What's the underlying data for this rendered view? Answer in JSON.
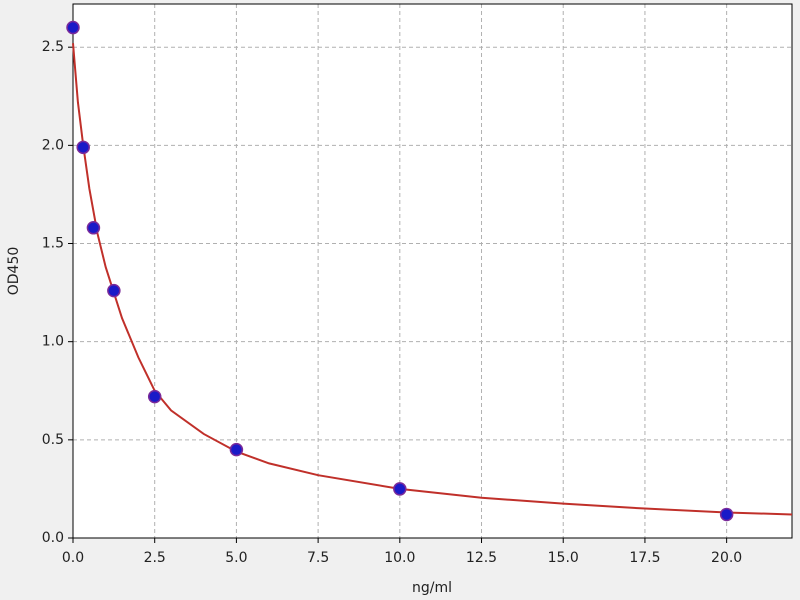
{
  "chart_data": {
    "type": "scatter",
    "x_label": "ng/ml",
    "y_label": "OD450",
    "xlim": [
      0,
      22
    ],
    "ylim": [
      0,
      2.72
    ],
    "xticks": [
      {
        "value": 0,
        "label": "0.0"
      },
      {
        "value": 2.5,
        "label": "2.5"
      },
      {
        "value": 5,
        "label": "5.0"
      },
      {
        "value": 7.5,
        "label": "7.5"
      },
      {
        "value": 10,
        "label": "10.0"
      },
      {
        "value": 12.5,
        "label": "12.5"
      },
      {
        "value": 15,
        "label": "15.0"
      },
      {
        "value": 17.5,
        "label": "17.5"
      },
      {
        "value": 20,
        "label": "20.0"
      }
    ],
    "yticks": [
      {
        "value": 0,
        "label": "0.0"
      },
      {
        "value": 0.5,
        "label": "0.5"
      },
      {
        "value": 1,
        "label": "1.0"
      },
      {
        "value": 1.5,
        "label": "1.5"
      },
      {
        "value": 2,
        "label": "2.0"
      },
      {
        "value": 2.5,
        "label": "2.5"
      }
    ],
    "grid": true,
    "series": [
      {
        "type": "line",
        "color": "#c0302a",
        "x": [
          0,
          0.15,
          0.3125,
          0.5,
          0.75,
          1,
          1.5,
          2,
          2.5,
          3,
          4,
          5,
          6,
          7.5,
          10,
          12.5,
          15,
          17.5,
          20,
          22
        ],
        "values": [
          2.52,
          2.22,
          2.0,
          1.78,
          1.55,
          1.38,
          1.12,
          0.92,
          0.75,
          0.65,
          0.53,
          0.44,
          0.38,
          0.32,
          0.25,
          0.205,
          0.175,
          0.15,
          0.13,
          0.12
        ]
      },
      {
        "type": "scatter",
        "color": "#1a1ac8",
        "x": [
          0,
          0.3125,
          0.625,
          1.25,
          2.5,
          5,
          10,
          20
        ],
        "values": [
          2.6,
          1.99,
          1.58,
          1.26,
          0.72,
          0.45,
          0.25,
          0.12
        ]
      }
    ]
  }
}
